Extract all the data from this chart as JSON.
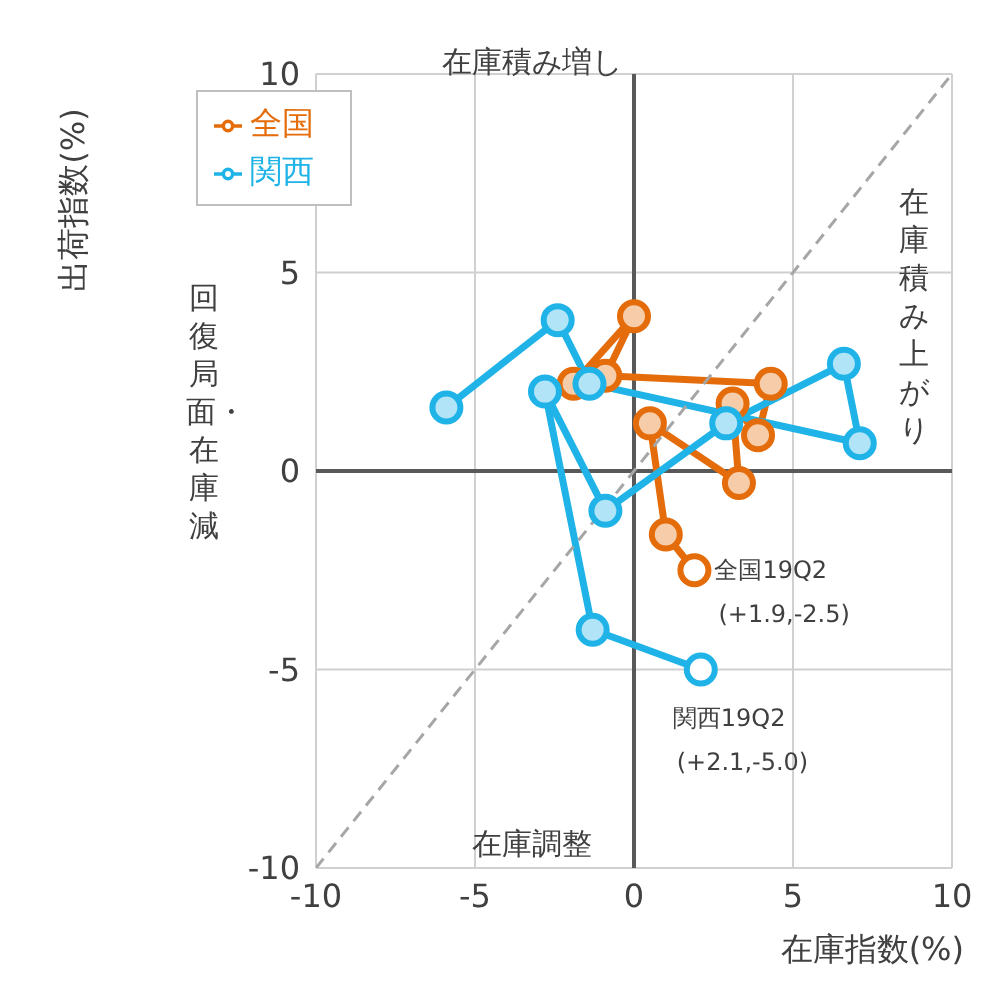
{
  "chart_data": {
    "type": "line",
    "xlabel": "在庫指数(%)",
    "ylabel": "出荷指数(%)",
    "xlim": [
      -10,
      10
    ],
    "xticks": [
      -10,
      -5,
      0,
      5,
      10
    ],
    "ylim": [
      -10,
      10
    ],
    "yticks": [
      -10,
      -5,
      0,
      5,
      10
    ],
    "grid": true,
    "legend": "top left",
    "marker": "circle",
    "line_style": "solid",
    "series": [
      {
        "name": "全国",
        "color": "#e46c0a",
        "x": [
          -1.9,
          0.0,
          -0.9,
          4.3,
          3.9,
          3.1,
          3.3,
          0.5,
          1.0,
          1.9
        ],
        "values": [
          2.2,
          3.9,
          2.4,
          2.2,
          0.9,
          1.7,
          -0.3,
          1.2,
          -1.6,
          -2.5
        ]
      },
      {
        "name": "関西",
        "color": "#1fb3e8",
        "x": [
          -5.9,
          -2.4,
          -1.4,
          7.1,
          6.6,
          2.9,
          -0.9,
          -2.8,
          -1.3,
          2.1
        ],
        "values": [
          1.6,
          3.8,
          2.2,
          0.7,
          2.7,
          1.2,
          -1.0,
          2.0,
          -4.0,
          -5.0
        ]
      },
      {
        "type": "line",
        "color": "#a6a6a6",
        "line_style": "dashed",
        "marker": "none",
        "x": [
          -10,
          10
        ],
        "values": [
          -10,
          10
        ]
      }
    ],
    "annotations": [
      "在庫積み増し",
      "在庫積み上がり",
      "回復局面・在庫減",
      "在庫調整",
      {
        "text": "全国19Q2\n(+1.9,-2.5)",
        "x": 1.9,
        "y": -2.5
      },
      {
        "text": "関西19Q2\n(+2.1,-5.0)",
        "x": 2.1,
        "y": -5.0
      }
    ]
  }
}
